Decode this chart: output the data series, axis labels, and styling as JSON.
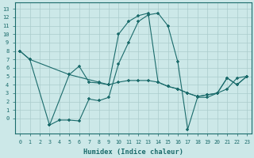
{
  "bg_color": "#cce8e8",
  "line_color": "#1a6b6b",
  "grid_color": "#aacccc",
  "xlabel": "Humidex (Indice chaleur)",
  "xlim": [
    -0.5,
    23.5
  ],
  "ylim": [
    -1.8,
    13.8
  ],
  "xticks": [
    0,
    1,
    2,
    3,
    4,
    5,
    6,
    7,
    8,
    9,
    10,
    11,
    12,
    13,
    14,
    15,
    16,
    17,
    18,
    19,
    20,
    21,
    22,
    23
  ],
  "yticks": [
    0,
    1,
    2,
    3,
    4,
    5,
    6,
    7,
    8,
    9,
    10,
    11,
    12,
    13
  ],
  "line1_x": [
    0,
    1,
    5,
    8,
    9,
    10,
    11,
    12,
    13,
    14,
    15,
    16,
    17,
    18,
    19,
    20,
    21,
    22,
    23
  ],
  "line1_y": [
    8.0,
    7.0,
    5.2,
    4.3,
    4.0,
    4.3,
    4.5,
    4.5,
    4.5,
    4.3,
    3.8,
    3.5,
    3.0,
    2.6,
    2.8,
    3.0,
    4.8,
    4.0,
    5.0
  ],
  "line2_x": [
    0,
    1,
    3,
    4,
    5,
    6,
    7,
    8,
    9,
    10,
    11,
    12,
    13,
    14,
    15,
    16,
    17,
    18,
    19,
    20,
    21,
    22,
    23
  ],
  "line2_y": [
    8.0,
    7.0,
    -0.8,
    -0.2,
    -0.2,
    -0.3,
    2.3,
    2.1,
    2.5,
    6.5,
    9.0,
    11.5,
    12.3,
    12.5,
    11.0,
    6.7,
    -1.3,
    2.5,
    2.5,
    3.0,
    3.5,
    4.8,
    5.0
  ],
  "line3_x": [
    3,
    5,
    6,
    7,
    8,
    9,
    10,
    11,
    12,
    13,
    14,
    15,
    16,
    17,
    18,
    19,
    20,
    21,
    22,
    23
  ],
  "line3_y": [
    -0.8,
    5.2,
    6.2,
    4.3,
    4.2,
    4.0,
    10.0,
    11.5,
    12.2,
    12.5,
    4.3,
    3.8,
    3.5,
    3.0,
    2.6,
    2.8,
    3.0,
    4.8,
    4.0,
    5.0
  ]
}
